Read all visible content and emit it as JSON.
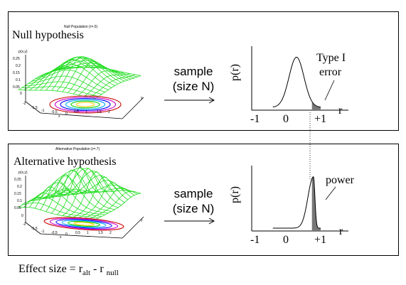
{
  "null_panel": {
    "population_title": "Null Population (r=.0)",
    "heading": "Null hypothesis",
    "surface_label": "p(x,y)",
    "z_ticks": [
      "0.25",
      "0.2",
      "0.15",
      "0.1",
      "0.05",
      "0"
    ],
    "x_ticks": [
      "-2",
      "-1.5",
      "-1",
      "-0.5",
      "0",
      "0.5",
      "1",
      "1.5",
      "2"
    ],
    "x_axis": "x",
    "y_axis": "y",
    "arrow_label_1": "sample",
    "arrow_label_2": "(size N)",
    "ylabel": "p(r)",
    "xlabel": "r",
    "axis_ticks": [
      "-1",
      "0",
      "+1"
    ],
    "annotation_1": "Type I",
    "annotation_2": "error"
  },
  "alt_panel": {
    "population_title": "Alternative Population (r=.7)",
    "heading": "Alternative hypothesis",
    "surface_label": "p(x,y)",
    "z_ticks": [
      "0.25",
      "0.2",
      "0.15",
      "0.1",
      "0.05",
      "0"
    ],
    "x_ticks": [
      "-2",
      "-1.5",
      "-1",
      "-0.5",
      "0",
      "0.5",
      "1",
      "1.5",
      "2"
    ],
    "x_axis": "x",
    "y_axis": "y",
    "arrow_label_1": "sample",
    "arrow_label_2": "(size N)",
    "ylabel": "p(r)",
    "xlabel": "r",
    "axis_ticks": [
      "-1",
      "0",
      "+1"
    ],
    "annotation_1": "power"
  },
  "footer": {
    "prefix": "Effect size = r",
    "sub1": "alt",
    "mid": " - r ",
    "sub2": "null"
  },
  "colors": {
    "mesh": "#22dd22",
    "shade": "#777777",
    "contours": [
      "#cc0000",
      "#cc00cc",
      "#0000ff",
      "#00aaff",
      "#00cc00",
      "#ffcc00"
    ]
  }
}
